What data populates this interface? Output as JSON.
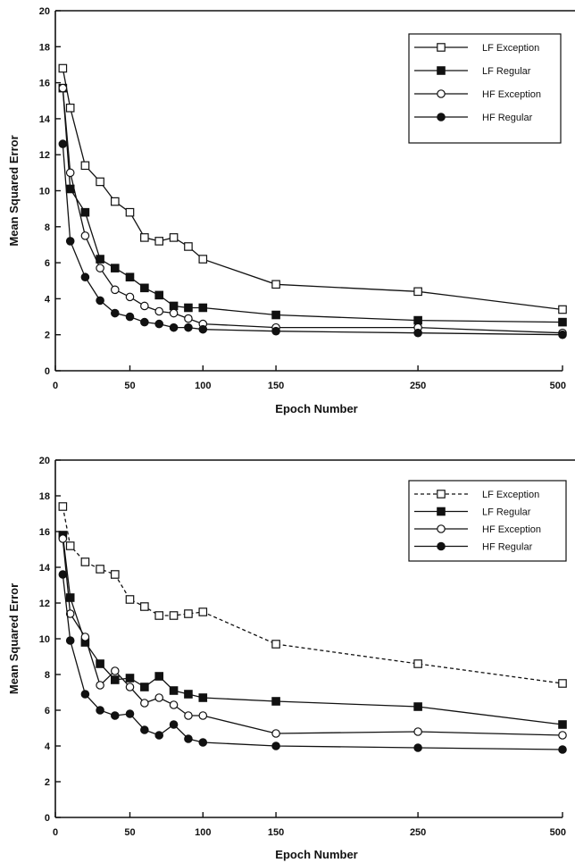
{
  "chart_data": [
    {
      "type": "line",
      "title": "",
      "xlabel": "Epoch Number",
      "ylabel": "Mean Squared Error",
      "x_tick_labels": [
        "0",
        "50",
        "100",
        "150",
        "250",
        "500"
      ],
      "y_tick_labels": [
        "0",
        "2",
        "4",
        "6",
        "8",
        "10",
        "12",
        "14",
        "16",
        "18",
        "20"
      ],
      "ylim": [
        0,
        20
      ],
      "legend_position": "top-right",
      "series": [
        {
          "name": "LF Exception",
          "marker": "open-square",
          "line": "solid",
          "x": [
            5,
            10,
            20,
            30,
            40,
            50,
            60,
            70,
            80,
            90,
            100,
            150,
            250,
            500
          ],
          "y": [
            16.8,
            14.6,
            11.4,
            10.5,
            9.4,
            8.8,
            7.4,
            7.2,
            7.4,
            6.9,
            6.2,
            4.8,
            4.4,
            3.4
          ]
        },
        {
          "name": "LF Regular",
          "marker": "filled-square",
          "line": "solid",
          "x": [
            5,
            10,
            20,
            30,
            40,
            50,
            60,
            70,
            80,
            90,
            100,
            150,
            250,
            500
          ],
          "y": [
            15.7,
            10.1,
            8.8,
            6.2,
            5.7,
            5.2,
            4.6,
            4.2,
            3.6,
            3.5,
            3.5,
            3.1,
            2.8,
            2.7
          ]
        },
        {
          "name": "HF Exception",
          "marker": "open-circle",
          "line": "solid",
          "x": [
            5,
            10,
            20,
            30,
            40,
            50,
            60,
            70,
            80,
            90,
            100,
            150,
            250,
            500
          ],
          "y": [
            15.7,
            11.0,
            7.5,
            5.7,
            4.5,
            4.1,
            3.6,
            3.3,
            3.2,
            2.9,
            2.6,
            2.4,
            2.4,
            2.1
          ]
        },
        {
          "name": "HF Regular",
          "marker": "filled-circle",
          "line": "solid",
          "x": [
            5,
            10,
            20,
            30,
            40,
            50,
            60,
            70,
            80,
            90,
            100,
            150,
            250,
            500
          ],
          "y": [
            12.6,
            7.2,
            5.2,
            3.9,
            3.2,
            3.0,
            2.7,
            2.6,
            2.4,
            2.4,
            2.3,
            2.2,
            2.1,
            2.0
          ]
        }
      ]
    },
    {
      "type": "line",
      "title": "",
      "xlabel": "Epoch Number",
      "ylabel": "Mean Squared Error",
      "x_tick_labels": [
        "0",
        "50",
        "100",
        "150",
        "250",
        "500"
      ],
      "y_tick_labels": [
        "0",
        "2",
        "4",
        "6",
        "8",
        "10",
        "12",
        "14",
        "16",
        "18",
        "20"
      ],
      "ylim": [
        0,
        20
      ],
      "legend_position": "top-right",
      "series": [
        {
          "name": "LF Exception",
          "marker": "open-square",
          "line": "dashed",
          "x": [
            5,
            10,
            20,
            30,
            40,
            50,
            60,
            70,
            80,
            90,
            100,
            150,
            250,
            500
          ],
          "y": [
            17.4,
            15.2,
            14.3,
            13.9,
            13.6,
            12.2,
            11.8,
            11.3,
            11.3,
            11.4,
            11.5,
            9.7,
            8.6,
            7.5
          ]
        },
        {
          "name": "LF Regular",
          "marker": "filled-square",
          "line": "solid",
          "x": [
            5,
            10,
            20,
            30,
            40,
            50,
            60,
            70,
            80,
            90,
            100,
            150,
            250,
            500
          ],
          "y": [
            15.8,
            12.3,
            9.8,
            8.6,
            7.7,
            7.8,
            7.3,
            7.9,
            7.1,
            6.9,
            6.7,
            6.5,
            6.2,
            5.2
          ]
        },
        {
          "name": "HF Exception",
          "marker": "open-circle",
          "line": "solid",
          "x": [
            5,
            10,
            20,
            30,
            40,
            50,
            60,
            70,
            80,
            90,
            100,
            150,
            250,
            500
          ],
          "y": [
            15.6,
            11.4,
            10.1,
            7.4,
            8.2,
            7.3,
            6.4,
            6.7,
            6.3,
            5.7,
            5.7,
            4.7,
            4.8,
            4.6
          ]
        },
        {
          "name": "HF Regular",
          "marker": "filled-circle",
          "line": "solid",
          "x": [
            5,
            10,
            20,
            30,
            40,
            50,
            60,
            70,
            80,
            90,
            100,
            150,
            250,
            500
          ],
          "y": [
            13.6,
            9.9,
            6.9,
            6.0,
            5.7,
            5.8,
            4.9,
            4.6,
            5.2,
            4.4,
            4.2,
            4.0,
            3.9,
            3.8
          ]
        }
      ]
    }
  ]
}
